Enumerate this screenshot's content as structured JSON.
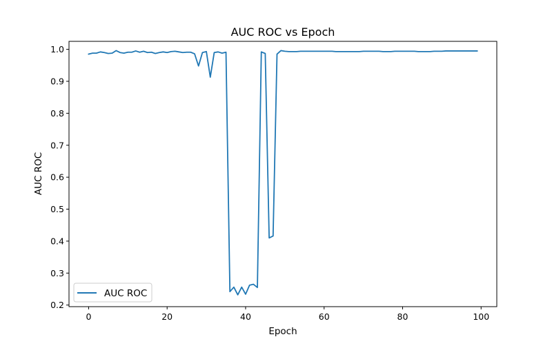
{
  "chart_data": {
    "type": "line",
    "title": "AUC ROC vs Epoch",
    "xlabel": "Epoch",
    "ylabel": "AUC ROC",
    "xlim": [
      -5,
      104
    ],
    "ylim": [
      0.195,
      1.025
    ],
    "xticks": [
      0,
      20,
      40,
      60,
      80,
      100
    ],
    "yticks": [
      0.2,
      0.3,
      0.4,
      0.5,
      0.6,
      0.7,
      0.8,
      0.9,
      1.0
    ],
    "xtick_labels": [
      "0",
      "20",
      "40",
      "60",
      "80",
      "100"
    ],
    "ytick_labels": [
      "0.2",
      "0.3",
      "0.4",
      "0.5",
      "0.6",
      "0.7",
      "0.8",
      "0.9",
      "1.0"
    ],
    "grid": false,
    "legend": {
      "position": "lower-left",
      "entries": [
        "AUC ROC"
      ]
    },
    "series": [
      {
        "name": "AUC ROC",
        "color": "#1f77b4",
        "x": [
          0,
          1,
          2,
          3,
          4,
          5,
          6,
          7,
          8,
          9,
          10,
          11,
          12,
          13,
          14,
          15,
          16,
          17,
          18,
          19,
          20,
          21,
          22,
          23,
          24,
          25,
          26,
          27,
          28,
          29,
          30,
          31,
          32,
          33,
          34,
          35,
          36,
          37,
          38,
          39,
          40,
          41,
          42,
          43,
          44,
          45,
          46,
          47,
          48,
          49,
          50,
          51,
          52,
          53,
          54,
          55,
          56,
          57,
          58,
          59,
          60,
          61,
          62,
          63,
          64,
          65,
          66,
          67,
          68,
          69,
          70,
          71,
          72,
          73,
          74,
          75,
          76,
          77,
          78,
          79,
          80,
          81,
          82,
          83,
          84,
          85,
          86,
          87,
          88,
          89,
          90,
          91,
          92,
          93,
          94,
          95,
          96,
          97,
          98,
          99
        ],
        "values": [
          0.985,
          0.988,
          0.988,
          0.992,
          0.99,
          0.987,
          0.988,
          0.996,
          0.99,
          0.988,
          0.991,
          0.991,
          0.995,
          0.991,
          0.994,
          0.99,
          0.991,
          0.987,
          0.99,
          0.992,
          0.99,
          0.993,
          0.994,
          0.992,
          0.99,
          0.991,
          0.991,
          0.986,
          0.948,
          0.99,
          0.993,
          0.913,
          0.99,
          0.992,
          0.988,
          0.991,
          0.242,
          0.256,
          0.232,
          0.256,
          0.234,
          0.262,
          0.265,
          0.255,
          0.992,
          0.987,
          0.41,
          0.416,
          0.985,
          0.996,
          0.994,
          0.993,
          0.993,
          0.993,
          0.994,
          0.994,
          0.994,
          0.994,
          0.994,
          0.994,
          0.994,
          0.994,
          0.994,
          0.993,
          0.993,
          0.993,
          0.993,
          0.993,
          0.993,
          0.993,
          0.994,
          0.994,
          0.994,
          0.994,
          0.994,
          0.993,
          0.993,
          0.993,
          0.994,
          0.994,
          0.994,
          0.994,
          0.994,
          0.994,
          0.993,
          0.993,
          0.993,
          0.993,
          0.994,
          0.994,
          0.994,
          0.995,
          0.995,
          0.995,
          0.995,
          0.995,
          0.995,
          0.995,
          0.995,
          0.995
        ]
      }
    ]
  }
}
